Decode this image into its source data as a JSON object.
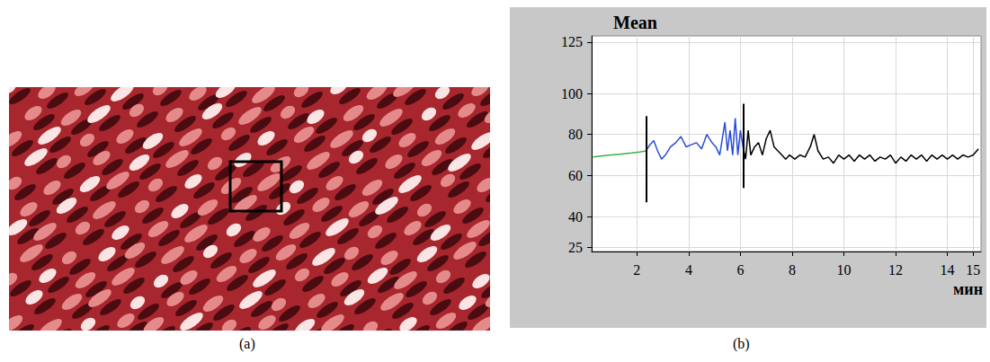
{
  "figure": {
    "panel_labels": [
      "(a)",
      "(b)"
    ]
  },
  "chart_data": {
    "type": "line",
    "title": "Mean",
    "x_label": "мин",
    "xlim": [
      0.25,
      15.3
    ],
    "xticks": [
      2,
      4,
      6,
      8,
      10,
      12,
      14,
      15
    ],
    "ylim": [
      23,
      128
    ],
    "yticks": [
      25,
      40,
      60,
      80,
      100,
      125
    ],
    "grid": true,
    "series": [
      {
        "color": "#3cb043",
        "x": [
          0.3,
          0.6,
          1.0,
          1.4,
          1.8,
          2.1,
          2.35
        ],
        "values": [
          69,
          69.5,
          70,
          70.5,
          71,
          71.5,
          72
        ]
      },
      {
        "color": "#2a4bd7",
        "x": [
          2.35,
          2.5,
          2.65,
          2.8,
          2.95,
          3.1,
          3.3,
          3.5,
          3.7,
          3.9,
          4.1,
          4.3,
          4.5,
          4.7,
          4.9,
          5.05,
          5.2,
          5.3,
          5.4,
          5.5,
          5.6,
          5.7,
          5.8,
          5.9,
          6.0,
          6.1
        ],
        "values": [
          72,
          75,
          77,
          72,
          68,
          70,
          74,
          76,
          79,
          74,
          75,
          76,
          73,
          80,
          76,
          74,
          70,
          78,
          86,
          72,
          82,
          70,
          88,
          70,
          82,
          74
        ]
      },
      {
        "color": "#000000",
        "x": [
          6.1,
          6.2,
          6.3,
          6.4,
          6.55,
          6.7,
          6.85,
          7.0,
          7.15,
          7.3,
          7.45,
          7.6,
          7.75,
          7.9,
          8.1,
          8.3,
          8.5,
          8.7,
          8.85,
          9.0,
          9.2,
          9.4,
          9.6,
          9.8,
          10.0,
          10.2,
          10.4,
          10.6,
          10.8,
          11.0,
          11.2,
          11.4,
          11.6,
          11.8,
          12.0,
          12.2,
          12.4,
          12.6,
          12.8,
          13.0,
          13.2,
          13.4,
          13.6,
          13.8,
          14.0,
          14.2,
          14.4,
          14.6,
          14.8,
          15.0,
          15.2
        ],
        "values": [
          74,
          68,
          82,
          70,
          74,
          76,
          70,
          78,
          82,
          74,
          72,
          70,
          68,
          70,
          68,
          70,
          69,
          74,
          80,
          72,
          68,
          69,
          66,
          70,
          68,
          70,
          67,
          70,
          68,
          70,
          67,
          69,
          68,
          70,
          66,
          69,
          67,
          70,
          68,
          70,
          67,
          70,
          68,
          70,
          68,
          70,
          68,
          70,
          69,
          70,
          73
        ]
      }
    ],
    "vertical_lines": [
      {
        "x": 2.35,
        "y_from": 47,
        "y_to": 89
      },
      {
        "x": 6.1,
        "y_from": 54,
        "y_to": 95
      }
    ]
  }
}
